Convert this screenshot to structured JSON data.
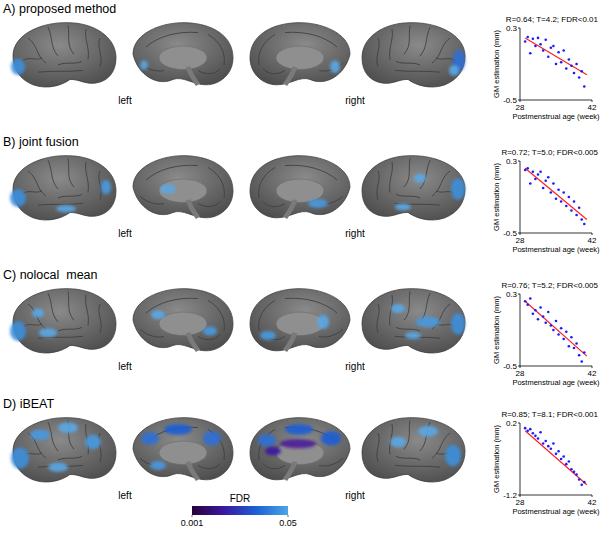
{
  "chart_data": [
    {
      "type": "scatter",
      "title": "A) proposed method",
      "annotation": "R=0.64; T=4.2; FDR<0.01",
      "x_label": "Postmenstrual age (week)",
      "y_label": "GM estimation (mm)",
      "xlim": [
        28,
        42
      ],
      "xticks": [
        28,
        42
      ],
      "ylim": [
        -0.5,
        0.3
      ],
      "yticks": [
        0.3,
        -0.5
      ],
      "color": "#1a1aff",
      "x": [
        29.0,
        29.5,
        30.0,
        30.5,
        31.0,
        31.5,
        32.0,
        32.5,
        33.0,
        33.5,
        34.0,
        34.5,
        35.0,
        35.5,
        36.0,
        36.5,
        37.0,
        37.5,
        38.0,
        38.5,
        39.0,
        39.5,
        40.0,
        40.5
      ],
      "values": [
        0.15,
        0.2,
        0.02,
        0.18,
        0.1,
        0.19,
        0.12,
        0.05,
        0.17,
        -0.02,
        0.08,
        0.1,
        -0.1,
        0.03,
        -0.08,
        0.05,
        -0.15,
        -0.05,
        -0.12,
        -0.2,
        -0.1,
        -0.25,
        -0.18,
        -0.35
      ],
      "fit": {
        "x": [
          29,
          41
        ],
        "values": [
          0.19,
          -0.22
        ],
        "color": "#ff2020"
      }
    },
    {
      "type": "scatter",
      "title": "B) joint fusion",
      "annotation": "R=0.72; T=5.0; FDR<0.005",
      "x_label": "Postmenstrual age (week)",
      "y_label": "GM estimation (mm)",
      "xlim": [
        28,
        42
      ],
      "xticks": [
        28,
        42
      ],
      "ylim": [
        -0.5,
        0.3
      ],
      "yticks": [
        0.3,
        -0.5
      ],
      "color": "#1a1aff",
      "x": [
        29.0,
        29.5,
        30.0,
        30.5,
        31.0,
        31.5,
        32.0,
        32.5,
        33.0,
        33.5,
        34.0,
        34.5,
        35.0,
        35.5,
        36.0,
        36.5,
        37.0,
        37.5,
        38.0,
        38.5,
        39.0,
        39.5,
        40.0,
        40.5
      ],
      "values": [
        0.2,
        0.22,
        0.05,
        0.18,
        0.1,
        0.15,
        0.18,
        0.0,
        0.08,
        0.12,
        -0.05,
        0.05,
        -0.12,
        -0.02,
        -0.15,
        -0.05,
        -0.2,
        -0.1,
        -0.25,
        -0.15,
        -0.3,
        -0.22,
        -0.35,
        -0.4
      ],
      "fit": {
        "x": [
          29,
          41
        ],
        "values": [
          0.22,
          -0.35
        ],
        "color": "#ff2020"
      }
    },
    {
      "type": "scatter",
      "title": "C) nolocal  mean",
      "annotation": "R=0.76; T=5.2; FDR<0.005",
      "x_label": "Postmenstrual age (week)",
      "y_label": "GM estimation (mm)",
      "xlim": [
        28,
        42
      ],
      "xticks": [
        28,
        42
      ],
      "ylim": [
        -0.5,
        0.3
      ],
      "yticks": [
        0.3,
        -0.5
      ],
      "color": "#1a1aff",
      "x": [
        29.0,
        29.5,
        30.0,
        30.5,
        31.0,
        31.5,
        32.0,
        32.5,
        33.0,
        33.5,
        34.0,
        34.5,
        35.0,
        35.5,
        36.0,
        36.5,
        37.0,
        37.5,
        38.0,
        38.5,
        39.0,
        39.5,
        40.0,
        40.5
      ],
      "values": [
        0.22,
        0.18,
        0.25,
        0.08,
        0.12,
        0.02,
        0.15,
        0.05,
        -0.02,
        0.1,
        -0.05,
        -0.1,
        0.0,
        -0.15,
        -0.08,
        -0.2,
        -0.12,
        -0.28,
        -0.18,
        -0.3,
        -0.25,
        -0.38,
        -0.45,
        -0.35
      ],
      "fit": {
        "x": [
          29,
          41
        ],
        "values": [
          0.22,
          -0.39
        ],
        "color": "#ff2020"
      }
    },
    {
      "type": "scatter",
      "title": "D) iBEAT",
      "annotation": "R=0.85; T=8.1; FDR<0.001",
      "x_label": "Postmenstrual age (week)",
      "y_label": "GM estimation (mm)",
      "xlim": [
        28,
        42
      ],
      "xticks": [
        28,
        42
      ],
      "ylim": [
        -1.2,
        0.2
      ],
      "yticks": [
        0.2,
        -1.2
      ],
      "color": "#1a1aff",
      "x": [
        29.0,
        29.5,
        30.0,
        30.5,
        31.0,
        31.5,
        32.0,
        32.5,
        33.0,
        33.5,
        34.0,
        34.5,
        35.0,
        35.5,
        36.0,
        36.5,
        37.0,
        37.5,
        38.0,
        38.5,
        39.0,
        39.5,
        40.0,
        40.5
      ],
      "values": [
        0.1,
        0.05,
        0.08,
        0.0,
        -0.05,
        -0.1,
        0.02,
        -0.2,
        -0.15,
        -0.25,
        -0.3,
        -0.2,
        -0.4,
        -0.35,
        -0.5,
        -0.45,
        -0.6,
        -0.55,
        -0.7,
        -0.75,
        -0.8,
        -0.9,
        -1.0,
        -0.95
      ],
      "fit": {
        "x": [
          29,
          41
        ],
        "values": [
          0.05,
          -1.0
        ],
        "color": "#ff2020"
      }
    }
  ],
  "hemispheres": [
    "left",
    "right"
  ],
  "colorbar": {
    "title": "FDR",
    "range": [
      0.001,
      0.05
    ],
    "ticks": [
      0.001,
      0.05
    ],
    "colors": [
      "#2a0038",
      "#3a18a0",
      "#1d5fd6",
      "#4aa6e4"
    ]
  }
}
